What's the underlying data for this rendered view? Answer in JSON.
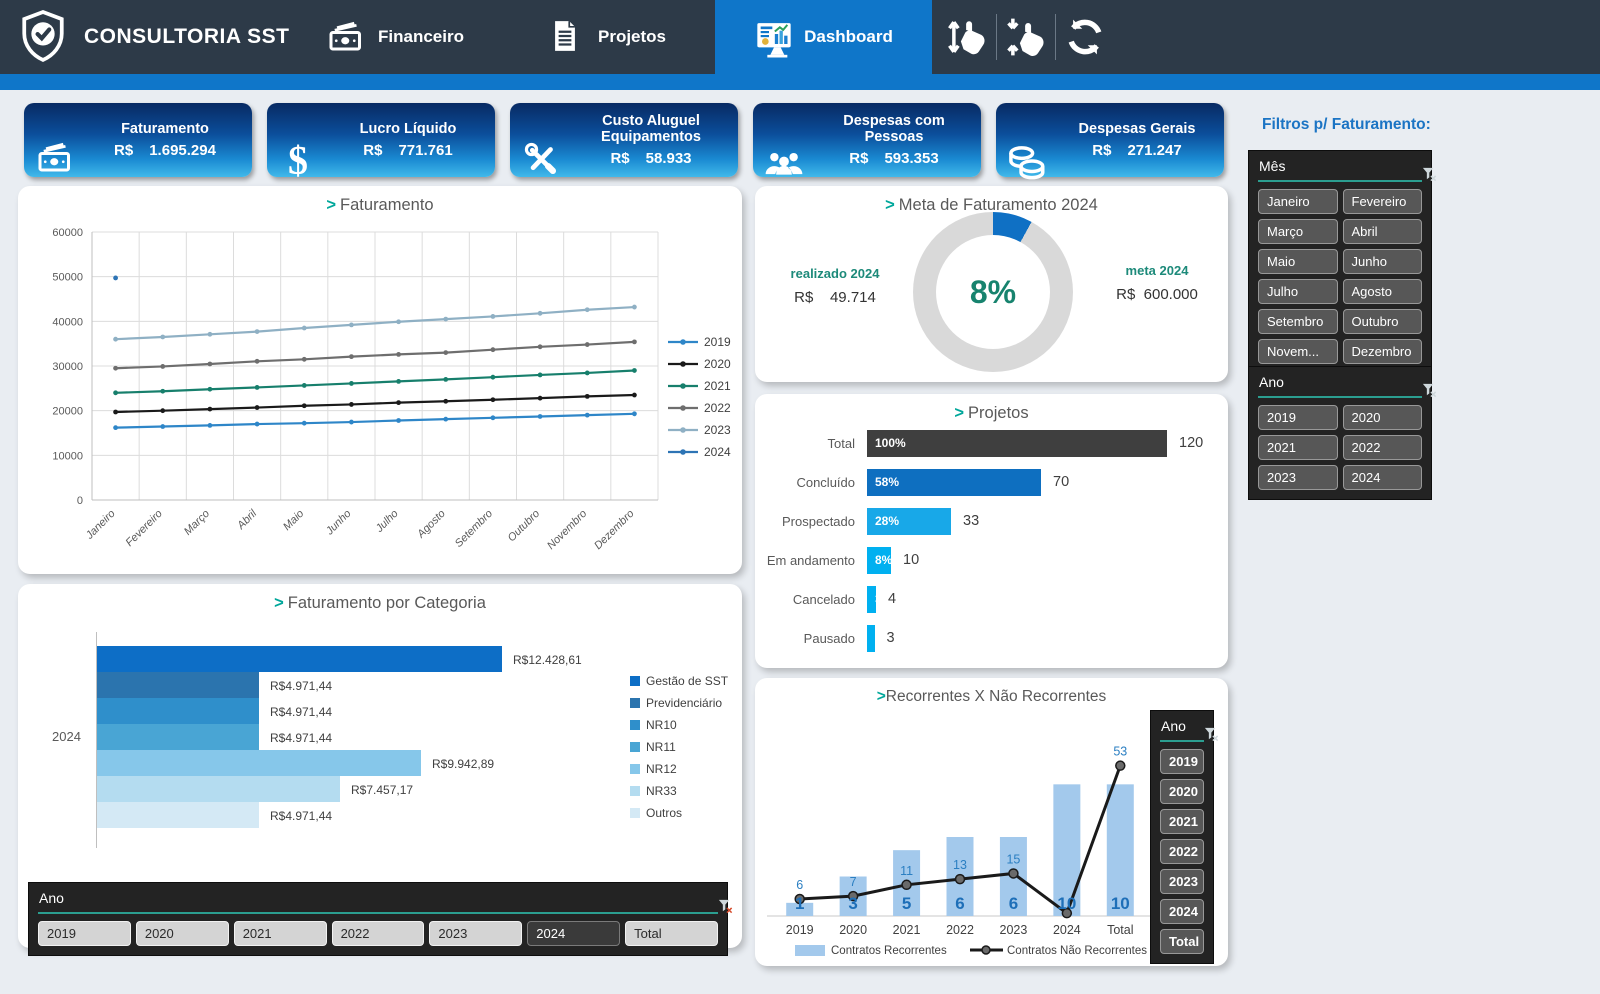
{
  "header": {
    "brand": "CONSULTORIA SST",
    "nav": [
      {
        "label": "Financeiro",
        "icon": "banknote-icon"
      },
      {
        "label": "Projetos",
        "icon": "document-icon"
      },
      {
        "label": "Dashboard",
        "icon": "dashboard-icon",
        "active": true
      }
    ],
    "tool_icons": [
      "swipe-vertical-icon",
      "pinch-vertical-icon",
      "refresh-icon"
    ]
  },
  "kpis": [
    {
      "icon": "banknote-icon",
      "label": "Faturamento",
      "currency": "R$",
      "value": "1.695.294"
    },
    {
      "icon": "dollar-icon",
      "label": "Lucro Líquido",
      "currency": "R$",
      "value": "771.761"
    },
    {
      "icon": "tools-icon",
      "label": "Custo Aluguel Equipamentos",
      "currency": "R$",
      "value": "58.933"
    },
    {
      "icon": "people-icon",
      "label": "Despesas com Pessoas",
      "currency": "R$",
      "value": "593.353"
    },
    {
      "icon": "coins-icon",
      "label": "Despesas Gerais",
      "currency": "R$",
      "value": "271.247"
    }
  ],
  "filters": {
    "title": "Filtros p/ Faturamento:",
    "mes": {
      "title": "Mês",
      "items": [
        "Janeiro",
        "Fevereiro",
        "Março",
        "Abril",
        "Maio",
        "Junho",
        "Julho",
        "Agosto",
        "Setembro",
        "Outubro",
        "Novem...",
        "Dezembro"
      ]
    },
    "ano": {
      "title": "Ano",
      "items": [
        "2019",
        "2020",
        "2021",
        "2022",
        "2023",
        "2024"
      ]
    }
  },
  "bottom_ano_slicer": {
    "title": "Ano",
    "items": [
      {
        "label": "2019"
      },
      {
        "label": "2020"
      },
      {
        "label": "2021"
      },
      {
        "label": "2022"
      },
      {
        "label": "2023"
      },
      {
        "label": "2024",
        "selected": true
      },
      {
        "label": "Total"
      }
    ]
  },
  "side_ano_slicer": {
    "title": "Ano",
    "items": [
      "2019",
      "2020",
      "2021",
      "2022",
      "2023",
      "2024",
      "Total"
    ]
  },
  "chart_data": [
    {
      "id": "faturamento",
      "type": "line",
      "title_prefix": ">",
      "title": "Faturamento",
      "x_labels": [
        "Janeiro",
        "Fevereiro",
        "Março",
        "Abril",
        "Maio",
        "Junho",
        "Julho",
        "Agosto",
        "Setembro",
        "Outubro",
        "Novembro",
        "Dezembro"
      ],
      "ylim": [
        0,
        60000
      ],
      "ytick_step": 10000,
      "grid": true,
      "legend_position": "right",
      "series": [
        {
          "name": "2019",
          "color": "#2e86c8",
          "values": [
            16200,
            16450,
            16700,
            17000,
            17200,
            17450,
            17800,
            18100,
            18400,
            18700,
            19000,
            19300
          ]
        },
        {
          "name": "2020",
          "color": "#1a1a1a",
          "values": [
            19700,
            20000,
            20350,
            20700,
            21100,
            21400,
            21800,
            22100,
            22450,
            22800,
            23200,
            23500
          ]
        },
        {
          "name": "2021",
          "color": "#177f6c",
          "values": [
            24000,
            24350,
            24800,
            25200,
            25650,
            26100,
            26550,
            27000,
            27500,
            28000,
            28450,
            29000
          ]
        },
        {
          "name": "2022",
          "color": "#6e6e6e",
          "values": [
            29500,
            29900,
            30450,
            31050,
            31500,
            32100,
            32600,
            33000,
            33650,
            34300,
            34800,
            35400
          ]
        },
        {
          "name": "2023",
          "color": "#8fb0c4",
          "values": [
            36000,
            36500,
            37100,
            37700,
            38500,
            39200,
            39900,
            40500,
            41100,
            41800,
            42600,
            43200
          ]
        },
        {
          "name": "2024",
          "color": "#2d74b5",
          "values": [
            49714
          ]
        }
      ]
    },
    {
      "id": "meta",
      "type": "donut",
      "title_prefix": ">",
      "title": "Meta de Faturamento 2024",
      "percent": 8,
      "percent_label": "8%",
      "left_label": "realizado 2024",
      "left_value": "R$    49.714",
      "right_label": "meta 2024",
      "right_value": "R$  600.000",
      "fill_color": "#0f70c4",
      "track_color": "#d9d9d9"
    },
    {
      "id": "projetos",
      "type": "bar",
      "title_prefix": ">",
      "title": "Projetos",
      "xlim_pct": [
        0,
        100
      ],
      "rows": [
        {
          "label": "Total",
          "pct_label": "100%",
          "pct": 100,
          "value": "120",
          "color": "#3f3f3f"
        },
        {
          "label": "Concluído",
          "pct_label": "58%",
          "pct": 58,
          "value": "70",
          "color": "#0e6fc0"
        },
        {
          "label": "Prospectado",
          "pct_label": "28%",
          "pct": 28,
          "value": "33",
          "color": "#18a8e8"
        },
        {
          "label": "Em andamento",
          "pct_label": "8%",
          "pct": 8,
          "value": "10",
          "color": "#00b0f0"
        },
        {
          "label": "Cancelado",
          "pct_label": "3%",
          "pct": 3,
          "value": "4",
          "color": "#00b0f0"
        },
        {
          "label": "Pausado",
          "pct_label": "",
          "pct": 2.5,
          "value": "3",
          "color": "#00b0f0"
        }
      ]
    },
    {
      "id": "categoria",
      "type": "bar",
      "title_prefix": ">",
      "title": "Faturamento por Categoria",
      "axis_label": "2024",
      "bars": [
        {
          "name": "Gestão de SST",
          "value": 12428.61,
          "value_label": "R$12.428,61",
          "color": "#0d6ec6"
        },
        {
          "name": "Previdenciário",
          "value": 4971.44,
          "value_label": "R$4.971,44",
          "color": "#2b74ae"
        },
        {
          "name": "NR10",
          "value": 4971.44,
          "value_label": "R$4.971,44",
          "color": "#2f8fcb"
        },
        {
          "name": "NR11",
          "value": 4971.44,
          "value_label": "R$4.971,44",
          "color": "#49a5d4"
        },
        {
          "name": "NR12",
          "value": 9942.89,
          "value_label": "R$9.942,89",
          "color": "#86c7ea"
        },
        {
          "name": "NR33",
          "value": 7457.17,
          "value_label": "R$7.457,17",
          "color": "#b4dcf0"
        },
        {
          "name": "Outros",
          "value": 4971.44,
          "value_label": "R$4.971,44",
          "color": "#d4e9f5"
        }
      ]
    },
    {
      "id": "recorrentes",
      "type": "combo",
      "title_prefix": ">",
      "title": "Recorrentes X Não Recorrentes",
      "categories": [
        "2019",
        "2020",
        "2021",
        "2022",
        "2023",
        "2024",
        "Total"
      ],
      "bar_series": {
        "name": "Contratos Recorrentes",
        "color": "#a3c9ec",
        "values": [
          1,
          3,
          5,
          6,
          6,
          10,
          10
        ]
      },
      "line_series": {
        "name": "Contratos Não Recorrentes",
        "color": "#1a1a1a",
        "values": [
          6,
          7,
          11,
          13,
          15,
          1,
          53
        ]
      },
      "bar_labels": [
        "1",
        "3",
        "5",
        "6",
        "6",
        "10",
        "10"
      ],
      "line_labels": [
        "6",
        "7",
        "11",
        "13",
        "15",
        "",
        "53"
      ],
      "bar_axis_max": 12,
      "line_axis_max": 55
    }
  ],
  "colors": {
    "nav_bg": "#2d3a48",
    "accent_blue": "#0f76c9",
    "teal_accent": "#00a79b",
    "bar_label_blue": "#1e6fb8"
  }
}
